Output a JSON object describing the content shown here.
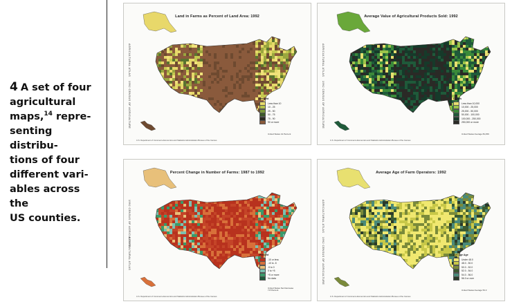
{
  "caption": {
    "number": "4",
    "lines": [
      "A set of four",
      "agricultural"
    ],
    "maps_word": "maps,",
    "footnote_ref": "14",
    "after_ref": " repre-",
    "tail_lines": [
      "senting distribu-",
      "tions of four",
      "different vari-",
      "ables across the",
      "US counties."
    ]
  },
  "maps": [
    {
      "title": "Land in Farms as Percent of Land Area: 1992",
      "side_top": "AGRICULTURAL ATLAS",
      "side_bottom": "1992 CENSUS OF AGRICULTURE",
      "legend_title": "Percent",
      "legend": [
        {
          "label": "Less than 10",
          "color": "#e9dc6a"
        },
        {
          "label": "10 - 25",
          "color": "#b6c44a"
        },
        {
          "label": "25 - 50",
          "color": "#7b9a3a"
        },
        {
          "label": "50 - 75",
          "color": "#3c5a2a"
        },
        {
          "label": "75 - 90",
          "color": "#2a2a22"
        },
        {
          "label": "90 or more",
          "color": "#8a5a3a"
        }
      ],
      "note": "United States 41 Percent",
      "footer": "U.S. Department of Commerce  Economics and Statistics Administration  Bureau of the Census",
      "palette": [
        "#8a5a3c",
        "#8a5a3c",
        "#8a5a3c",
        "#6e4a30",
        "#9aa63e",
        "#c4c850",
        "#e6d86a",
        "#5a7430",
        "#f0e27a",
        "#8a5a3c"
      ],
      "alaska_color": "#e8d86a"
    },
    {
      "title": "Average Value of Agricultural Products Sold: 1992",
      "side_top": "AGRICULTURAL ATLAS",
      "side_bottom": "1992 CENSUS OF AGRICULTURE",
      "legend_title": "Dollars",
      "legend": [
        {
          "label": "Less than 10,000",
          "color": "#e8e070"
        },
        {
          "label": "10,000 - 25,000",
          "color": "#9cc44a"
        },
        {
          "label": "25,000 - 50,000",
          "color": "#3a8a3a"
        },
        {
          "label": "50,000 - 100,000",
          "color": "#1f5a3a"
        },
        {
          "label": "100,000 - 250,000",
          "color": "#163a2a"
        },
        {
          "label": "250,000 or more",
          "color": "#2a2a26"
        }
      ],
      "note": "United States Average 84,459",
      "footer": "U.S. Department of Commerce  Economics and Statistics Administration  Bureau of the Census",
      "palette": [
        "#2a2a26",
        "#2a2a26",
        "#163a2a",
        "#1f5a3a",
        "#3a8a3a",
        "#9cc44a",
        "#e8e070",
        "#2a2a26",
        "#1f5a3a",
        "#3a8a3a"
      ],
      "alaska_color": "#6aa83a"
    },
    {
      "title": "Percent Change in Number of Farms: 1987 to 1992",
      "side_top": "1992 CENSUS OF AGRICULTURE",
      "side_bottom": "AGRICULTURAL ATLAS",
      "legend_title": "Percent",
      "legend": [
        {
          "label": "-10 or less",
          "color": "#b8321e"
        },
        {
          "label": "-10 to -5",
          "color": "#d8703a"
        },
        {
          "label": "-5 to 0",
          "color": "#e8c07a"
        },
        {
          "label": "0 to +5",
          "color": "#7cc0b0"
        },
        {
          "label": "+5 or more",
          "color": "#3a9a6a"
        },
        {
          "label": "No data",
          "color": "#1f5a3a"
        }
      ],
      "note": "United States Net Decrease 7.8 Percent",
      "footer": "U.S. Department of Commerce  Economics and Statistics Administration  Bureau of the Census",
      "palette": [
        "#b8321e",
        "#b8321e",
        "#c44428",
        "#d8703a",
        "#b8321e",
        "#e8c07a",
        "#7cc0b0",
        "#3a9a6a",
        "#b8321e",
        "#c44428"
      ],
      "alaska_color": "#e8c07a"
    },
    {
      "title": "Average Age of Farm Operators: 1992",
      "side_top": "AGRICULTURAL ATLAS",
      "side_bottom": "1992 CENSUS OF AGRICULTURE",
      "legend_title": "Average Age",
      "legend": [
        {
          "label": "Under 48.0",
          "color": "#f0e870"
        },
        {
          "label": "48.0 - 50.0",
          "color": "#c8c848"
        },
        {
          "label": "50.0 - 52.0",
          "color": "#7a8a3a"
        },
        {
          "label": "52.0 - 54.0",
          "color": "#3a5a32"
        },
        {
          "label": "54.0 - 56.0",
          "color": "#4a8a7a"
        },
        {
          "label": "56.0 or over",
          "color": "#2a3a2a"
        }
      ],
      "note": "United States Average 53.3",
      "footer": "U.S. Department of Commerce  Economics and Statistics Administration  Bureau of the Census",
      "palette": [
        "#f0e870",
        "#f0e870",
        "#c8c848",
        "#7a8a3a",
        "#3a5a32",
        "#4a8a7a",
        "#f0e870",
        "#2a3a2a",
        "#c8c848",
        "#4a8a7a"
      ],
      "alaska_color": "#e8e070"
    }
  ]
}
